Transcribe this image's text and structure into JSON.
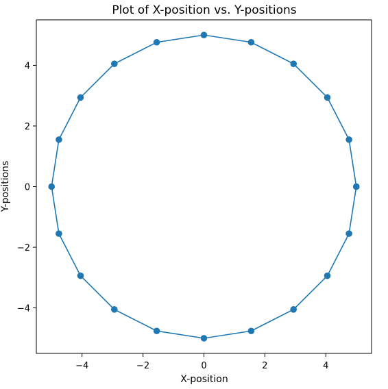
{
  "chart_data": {
    "type": "line",
    "title": "Plot of X-position vs. Y-positions",
    "xlabel": "X-position",
    "ylabel": "Y-positions",
    "xlim": [
      -5.5,
      5.5
    ],
    "ylim": [
      -5.5,
      5.5
    ],
    "xticks": [
      -4,
      -2,
      0,
      2,
      4
    ],
    "yticks": [
      -4,
      -2,
      0,
      2,
      4
    ],
    "tick_labels_x": [
      "−4",
      "−2",
      "0",
      "2",
      "4"
    ],
    "tick_labels_y": [
      "−4",
      "−2",
      "0",
      "2",
      "4"
    ],
    "grid": false,
    "color": "#1f77b4",
    "marker": "circle",
    "series": [
      {
        "x": [
          5.0,
          4.76,
          4.05,
          2.94,
          1.55,
          0.0,
          -1.55,
          -2.94,
          -4.05,
          -4.76,
          -5.0,
          -4.76,
          -4.05,
          -2.94,
          -1.55,
          0.0,
          1.55,
          2.94,
          4.05,
          4.76,
          5.0
        ],
        "y": [
          0.0,
          1.55,
          2.94,
          4.05,
          4.76,
          5.0,
          4.76,
          4.05,
          2.94,
          1.55,
          0.0,
          -1.55,
          -2.94,
          -4.05,
          -4.76,
          -5.0,
          -4.76,
          -4.05,
          -2.94,
          -1.55,
          0.0
        ]
      }
    ]
  }
}
